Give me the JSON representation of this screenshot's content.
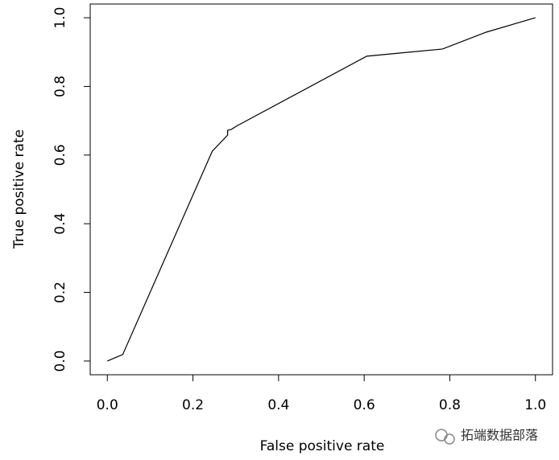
{
  "chart_data": {
    "type": "line",
    "xlabel": "False positive rate",
    "ylabel": "True positive rate",
    "x": [
      0,
      0.036,
      0.245,
      0.281,
      0.281,
      0.29,
      0.301,
      0.606,
      0.783,
      0.885,
      1
    ],
    "series": [
      {
        "color": "#000000",
        "values": [
          0,
          0.019,
          0.611,
          0.658,
          0.672,
          0.675,
          0.684,
          0.888,
          0.909,
          0.958,
          1
        ]
      }
    ],
    "xlim": [
      -0.04,
      1.04
    ],
    "ylim": [
      -0.04,
      1.04
    ],
    "xticks": [
      {
        "value": 0,
        "label": "0.0"
      },
      {
        "value": 0.2,
        "label": "0.2"
      },
      {
        "value": 0.4,
        "label": "0.4"
      },
      {
        "value": 0.6,
        "label": "0.6"
      },
      {
        "value": 0.8,
        "label": "0.8"
      },
      {
        "value": 1,
        "label": "1.0"
      }
    ],
    "yticks": [
      {
        "value": 0,
        "label": "0.0"
      },
      {
        "value": 0.2,
        "label": "0.2"
      },
      {
        "value": 0.4,
        "label": "0.4"
      },
      {
        "value": 0.6,
        "label": "0.6"
      },
      {
        "value": 0.8,
        "label": "0.8"
      },
      {
        "value": 1,
        "label": "1.0"
      }
    ],
    "watermark": "拓端数据部落"
  }
}
